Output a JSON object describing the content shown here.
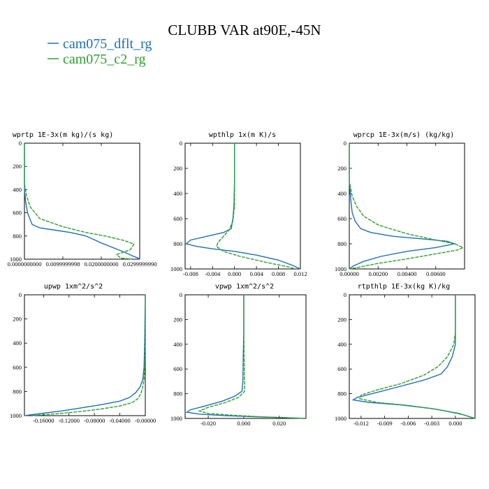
{
  "title": "CLUBB VAR at90E,-45N",
  "legend": [
    {
      "label": "cam075_dflt_rg",
      "color": "#1f6fb4"
    },
    {
      "label": "cam075_c2_rg",
      "color": "#2ca02c"
    }
  ],
  "chart_data": [
    {
      "type": "line",
      "title": "wprtp  1E-3x(m kg)/(s kg)",
      "xlim": [
        0.0,
        0.03
      ],
      "ylim": [
        1000,
        0
      ],
      "xticks": [
        0.0,
        0.01,
        0.02,
        0.03
      ],
      "xticklabels": [
        "0.0000000000",
        "0.0099999998",
        "0.0200000000",
        "0.0299999990"
      ],
      "yticks": [
        0,
        200,
        400,
        600,
        800,
        1000
      ],
      "series": [
        {
          "name": "cam075_dflt_rg",
          "points": [
            [
              0,
              0
            ],
            [
              0,
              300
            ],
            [
              0,
              400
            ],
            [
              0.0003,
              500
            ],
            [
              0.0008,
              600
            ],
            [
              0.0015,
              660
            ],
            [
              0.002,
              700
            ],
            [
              0.004,
              730
            ],
            [
              0.008,
              750
            ],
            [
              0.012,
              770
            ],
            [
              0.016,
              800
            ],
            [
              0.018,
              830
            ],
            [
              0.02,
              860
            ],
            [
              0.023,
              900
            ],
            [
              0.026,
              940
            ],
            [
              0.028,
              970
            ],
            [
              0.0295,
              990
            ],
            [
              0.03,
              1000
            ]
          ]
        },
        {
          "name": "cam075_c2_rg",
          "points": [
            [
              0,
              0
            ],
            [
              0,
              350
            ],
            [
              0.0005,
              450
            ],
            [
              0.0015,
              550
            ],
            [
              0.004,
              650
            ],
            [
              0.01,
              720
            ],
            [
              0.016,
              770
            ],
            [
              0.021,
              800
            ],
            [
              0.026,
              840
            ],
            [
              0.0285,
              870
            ],
            [
              0.0275,
              920
            ],
            [
              0.024,
              960
            ],
            [
              0.025,
              990
            ],
            [
              0.028,
              1000
            ]
          ]
        }
      ]
    },
    {
      "type": "line",
      "title": "wpthlp  1x(m K)/s",
      "xlim": [
        -0.009,
        0.012
      ],
      "ylim": [
        1000,
        0
      ],
      "xticks": [
        -0.008,
        -0.004,
        0.0,
        0.004,
        0.008,
        0.012
      ],
      "xticklabels": [
        "-0.008",
        "-0.004",
        "0.000",
        "0.004",
        "0.008",
        "0.012"
      ],
      "yticks": [
        0,
        200,
        400,
        600,
        800,
        1000
      ],
      "series": [
        {
          "name": "cam075_dflt_rg",
          "points": [
            [
              0,
              0
            ],
            [
              0,
              300
            ],
            [
              -0.0001,
              500
            ],
            [
              -0.0003,
              600
            ],
            [
              -0.0006,
              680
            ],
            [
              -0.002,
              710
            ],
            [
              -0.005,
              740
            ],
            [
              -0.008,
              770
            ],
            [
              -0.0088,
              800
            ],
            [
              -0.007,
              820
            ],
            [
              -0.004,
              840
            ],
            [
              0.0,
              860
            ],
            [
              0.004,
              890
            ],
            [
              0.008,
              930
            ],
            [
              0.0105,
              970
            ],
            [
              0.0115,
              990
            ],
            [
              0.012,
              1000
            ]
          ]
        },
        {
          "name": "cam075_c2_rg",
          "points": [
            [
              0,
              0
            ],
            [
              0,
              300
            ],
            [
              0,
              500
            ],
            [
              -0.0003,
              620
            ],
            [
              -0.001,
              690
            ],
            [
              -0.002,
              740
            ],
            [
              -0.003,
              790
            ],
            [
              -0.0033,
              820
            ],
            [
              -0.002,
              860
            ],
            [
              0.001,
              900
            ],
            [
              0.006,
              950
            ],
            [
              0.01,
              985
            ],
            [
              0.011,
              1000
            ]
          ]
        }
      ]
    },
    {
      "type": "line",
      "title": "wprcp  1E-3x(m/s) (kg/kg)",
      "xlim": [
        0.0,
        0.008
      ],
      "ylim": [
        1000,
        0
      ],
      "xticks": [
        0.0,
        0.002,
        0.004,
        0.006
      ],
      "xticklabels": [
        "0.00000",
        "0.00200",
        "0.00400",
        "0.00600"
      ],
      "yticks": [
        0,
        200,
        400,
        600,
        800,
        1000
      ],
      "series": [
        {
          "name": "cam075_dflt_rg",
          "points": [
            [
              0,
              0
            ],
            [
              0,
              300
            ],
            [
              0.0001,
              450
            ],
            [
              0.0002,
              550
            ],
            [
              0.0004,
              620
            ],
            [
              0.0008,
              680
            ],
            [
              0.0015,
              710
            ],
            [
              0.003,
              740
            ],
            [
              0.005,
              760
            ],
            [
              0.0068,
              780
            ],
            [
              0.0073,
              800
            ],
            [
              0.006,
              830
            ],
            [
              0.004,
              860
            ],
            [
              0.0022,
              900
            ],
            [
              0.001,
              940
            ],
            [
              0.0003,
              975
            ],
            [
              0.0,
              1000
            ]
          ]
        },
        {
          "name": "cam075_c2_rg",
          "points": [
            [
              0,
              0
            ],
            [
              0,
              300
            ],
            [
              0.0002,
              420
            ],
            [
              0.0005,
              500
            ],
            [
              0.001,
              580
            ],
            [
              0.002,
              650
            ],
            [
              0.004,
              720
            ],
            [
              0.006,
              770
            ],
            [
              0.0073,
              800
            ],
            [
              0.0079,
              830
            ],
            [
              0.0075,
              850
            ],
            [
              0.006,
              880
            ],
            [
              0.004,
              920
            ],
            [
              0.0018,
              960
            ],
            [
              0.0005,
              990
            ],
            [
              0.0,
              1000
            ]
          ]
        }
      ]
    },
    {
      "type": "line",
      "title": "upwp  1xm^2/s^2",
      "xlim": [
        -0.19,
        0.0
      ],
      "ylim": [
        1000,
        0
      ],
      "xticks": [
        -0.16,
        -0.12,
        -0.08,
        -0.04,
        0.0
      ],
      "xticklabels": [
        "-0.16000",
        "-0.12000",
        "-0.08000",
        "-0.04000",
        "-0.00000"
      ],
      "yticks": [
        0,
        200,
        400,
        600,
        800,
        1000
      ],
      "series": [
        {
          "name": "cam075_dflt_rg",
          "points": [
            [
              0,
              0
            ],
            [
              -0.001,
              400
            ],
            [
              -0.002,
              600
            ],
            [
              -0.004,
              700
            ],
            [
              -0.008,
              760
            ],
            [
              -0.015,
              810
            ],
            [
              -0.025,
              850
            ],
            [
              -0.04,
              880
            ],
            [
              -0.07,
              910
            ],
            [
              -0.1,
              935
            ],
            [
              -0.13,
              960
            ],
            [
              -0.16,
              980
            ],
            [
              -0.19,
              1000
            ]
          ]
        },
        {
          "name": "cam075_c2_rg",
          "points": [
            [
              0,
              0
            ],
            [
              0,
              400
            ],
            [
              -0.001,
              600
            ],
            [
              -0.002,
              700
            ],
            [
              -0.004,
              760
            ],
            [
              -0.007,
              820
            ],
            [
              -0.012,
              860
            ],
            [
              -0.02,
              890
            ],
            [
              -0.04,
              920
            ],
            [
              -0.07,
              945
            ],
            [
              -0.1,
              965
            ],
            [
              -0.14,
              985
            ],
            [
              -0.18,
              1000
            ]
          ]
        }
      ]
    },
    {
      "type": "line",
      "title": "vpwp  1xm^2/s^2",
      "xlim": [
        -0.033,
        0.035
      ],
      "ylim": [
        1000,
        0
      ],
      "xticks": [
        -0.02,
        0.0,
        0.02
      ],
      "xticklabels": [
        "-0.020",
        "0.000",
        "0.020"
      ],
      "yticks": [
        0,
        200,
        400,
        600,
        800,
        1000
      ],
      "series": [
        {
          "name": "cam075_dflt_rg",
          "points": [
            [
              0,
              0
            ],
            [
              0,
              300
            ],
            [
              -0.0003,
              500
            ],
            [
              -0.0005,
              700
            ],
            [
              -0.001,
              780
            ],
            [
              -0.005,
              820
            ],
            [
              -0.012,
              860
            ],
            [
              -0.022,
              900
            ],
            [
              -0.03,
              930
            ],
            [
              -0.032,
              950
            ],
            [
              -0.025,
              965
            ],
            [
              -0.01,
              978
            ],
            [
              0.01,
              988
            ],
            [
              0.028,
              996
            ],
            [
              0.035,
              1000
            ]
          ]
        },
        {
          "name": "cam075_c2_rg",
          "points": [
            [
              0,
              0
            ],
            [
              0,
              300
            ],
            [
              0.0002,
              500
            ],
            [
              0.0004,
              700
            ],
            [
              0.0005,
              780
            ],
            [
              -0.003,
              830
            ],
            [
              -0.01,
              870
            ],
            [
              -0.02,
              910
            ],
            [
              -0.025,
              940
            ],
            [
              -0.02,
              960
            ],
            [
              -0.005,
              975
            ],
            [
              0.012,
              988
            ],
            [
              0.03,
              997
            ],
            [
              0.035,
              1000
            ]
          ]
        }
      ]
    },
    {
      "type": "line",
      "title": "rtpthlp  1E-3x(kg K)/kg",
      "xlim": [
        -0.0135,
        0.0025
      ],
      "ylim": [
        1000,
        0
      ],
      "xticks": [
        -0.012,
        -0.009,
        -0.006,
        -0.003,
        0.0
      ],
      "xticklabels": [
        "-0.012",
        "-0.009",
        "-0.006",
        "-0.003",
        "0.000"
      ],
      "yticks": [
        0,
        200,
        400,
        600,
        800,
        1000
      ],
      "series": [
        {
          "name": "cam075_dflt_rg",
          "points": [
            [
              0,
              0
            ],
            [
              0,
              300
            ],
            [
              0,
              400
            ],
            [
              -0.0004,
              500
            ],
            [
              -0.001,
              580
            ],
            [
              -0.0018,
              640
            ],
            [
              -0.004,
              690
            ],
            [
              -0.007,
              740
            ],
            [
              -0.01,
              790
            ],
            [
              -0.0125,
              830
            ],
            [
              -0.013,
              850
            ],
            [
              -0.011,
              870
            ],
            [
              -0.007,
              890
            ],
            [
              -0.003,
              920
            ],
            [
              0.0005,
              960
            ],
            [
              0.0025,
              1000
            ]
          ]
        },
        {
          "name": "cam075_c2_rg",
          "points": [
            [
              0,
              0
            ],
            [
              0,
              300
            ],
            [
              -0.0002,
              400
            ],
            [
              -0.001,
              500
            ],
            [
              -0.0022,
              580
            ],
            [
              -0.004,
              650
            ],
            [
              -0.007,
              720
            ],
            [
              -0.01,
              770
            ],
            [
              -0.012,
              810
            ],
            [
              -0.0122,
              840
            ],
            [
              -0.01,
              870
            ],
            [
              -0.006,
              895
            ],
            [
              -0.002,
              930
            ],
            [
              0.001,
              970
            ],
            [
              0.0025,
              1000
            ]
          ]
        }
      ]
    }
  ]
}
